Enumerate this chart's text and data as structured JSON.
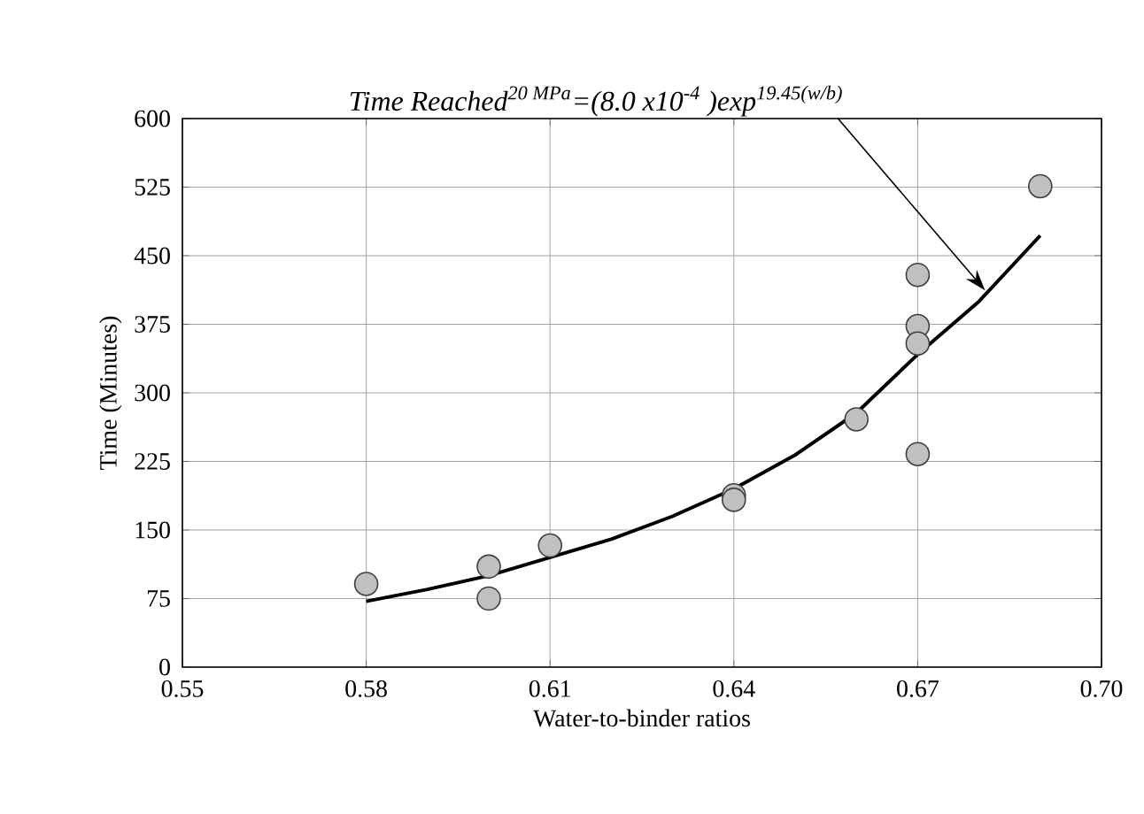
{
  "chart_data": {
    "type": "scatter",
    "xlabel": "Water-to-binder ratios",
    "ylabel": "Time (Minutes)",
    "xlim": [
      0.55,
      0.7
    ],
    "xticks": [
      0.55,
      0.58,
      0.61,
      0.64,
      0.67,
      {
        "value": 0.7,
        "label": "0.70"
      }
    ],
    "ylim": [
      0,
      600
    ],
    "yticks": [
      0,
      75,
      150,
      225,
      300,
      375,
      450,
      525,
      600
    ],
    "grid": true,
    "series": [
      {
        "color": "#c0c0c0",
        "x": [
          0.58,
          0.6,
          0.6,
          0.61,
          0.64,
          0.64,
          0.66,
          0.67,
          0.67,
          0.67,
          0.67,
          0.69
        ],
        "values": [
          91,
          110,
          75,
          133,
          188,
          183,
          271,
          429,
          373,
          354,
          233,
          526
        ]
      },
      {
        "type": "line",
        "color": "#000000",
        "x": [
          0.58,
          0.59,
          0.6,
          0.61,
          0.62,
          0.63,
          0.64,
          0.65,
          0.66,
          0.67,
          0.68,
          0.69
        ],
        "values": [
          72,
          85,
          100,
          120,
          140,
          165,
          195,
          232,
          278,
          342,
          400,
          472
        ]
      }
    ],
    "annotations": [
      {
        "text": "Time Reached$^{20 MPa}$=(8.0 x10$^{-4}$ )exp$^{19.45(w/b)}$",
        "x": 0.681,
        "y": 412
      }
    ]
  }
}
